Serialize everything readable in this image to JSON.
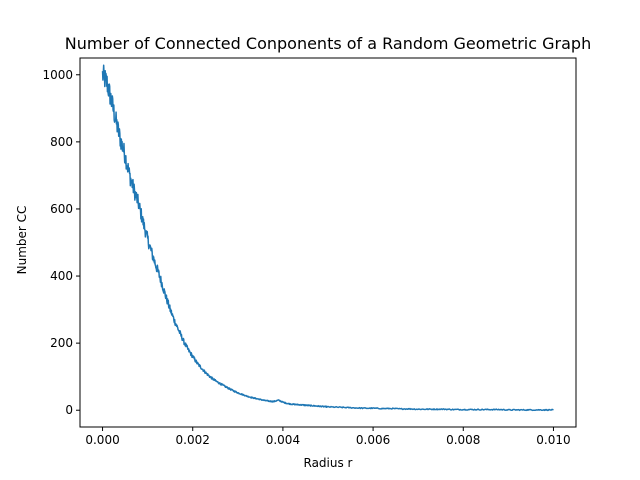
{
  "chart_data": {
    "type": "line",
    "title": "Number of Connected Conponents of a Random Geometric Graph",
    "xlabel": "Radius r",
    "ylabel": "Number CC",
    "xlim": [
      -0.0005,
      0.0105
    ],
    "ylim": [
      -50,
      1050
    ],
    "xticks": [
      0.0,
      0.002,
      0.004,
      0.006,
      0.008,
      0.01
    ],
    "xtick_labels": [
      "0.000",
      "0.002",
      "0.004",
      "0.006",
      "0.008",
      "0.010"
    ],
    "yticks": [
      0,
      200,
      400,
      600,
      800,
      1000
    ],
    "ytick_labels": [
      "0",
      "200",
      "400",
      "600",
      "800",
      "1000"
    ],
    "grid": false,
    "colors": {
      "line": "#1f77b4"
    },
    "series": [
      {
        "x": [
          0.0,
          0.0001,
          0.0002,
          0.0003,
          0.0004,
          0.0005,
          0.0006,
          0.0007,
          0.0008,
          0.0009,
          0.001,
          0.0011,
          0.0012,
          0.0013,
          0.0014,
          0.0015,
          0.0016,
          0.0017,
          0.0018,
          0.0019,
          0.002,
          0.0021,
          0.0022,
          0.0023,
          0.0024,
          0.0025,
          0.0026,
          0.0027,
          0.0028,
          0.0029,
          0.003,
          0.0031,
          0.0032,
          0.0033,
          0.0034,
          0.0035,
          0.0036,
          0.0037,
          0.0038,
          0.0039,
          0.004,
          0.0041,
          0.0042,
          0.0043,
          0.0044,
          0.0045,
          0.0046,
          0.0047,
          0.0048,
          0.0049,
          0.005,
          0.0052,
          0.0054,
          0.0056,
          0.0058,
          0.006,
          0.0062,
          0.0064,
          0.0066,
          0.0068,
          0.007,
          0.0072,
          0.0074,
          0.0076,
          0.0078,
          0.008,
          0.0082,
          0.0084,
          0.0086,
          0.0088,
          0.009,
          0.0092,
          0.0094,
          0.0096,
          0.0098,
          0.01
        ],
        "y": [
          1000,
          975,
          920,
          860,
          805,
          760,
          700,
          655,
          615,
          560,
          510,
          465,
          425,
          385,
          340,
          300,
          265,
          235,
          205,
          180,
          160,
          140,
          125,
          110,
          98,
          88,
          80,
          72,
          65,
          58,
          52,
          47,
          42,
          38,
          35,
          32,
          29,
          27,
          26,
          30,
          24,
          20,
          18,
          17,
          16,
          15,
          14,
          13,
          12,
          11,
          10,
          9,
          8,
          7,
          6,
          6,
          5,
          5,
          4,
          4,
          3,
          3,
          3,
          3,
          2,
          2,
          2,
          2,
          2,
          2,
          1,
          1,
          1,
          1,
          1,
          1
        ]
      }
    ]
  }
}
